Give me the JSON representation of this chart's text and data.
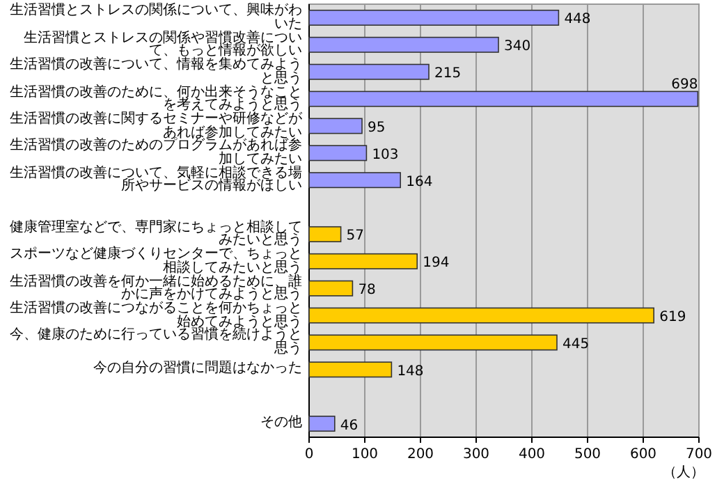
{
  "chart_data": {
    "type": "bar",
    "orientation": "horizontal",
    "xlabel": "（人）",
    "categories": [
      "生活習慣とストレスの関係について、興味がわいた",
      "生活習慣とストレスの関係や習慣改善について、もっと情報が欲しい",
      "生活習慣の改善について、情報を集めてみようと思う",
      "生活習慣の改善のために、何か出来そうなことを考えてみようと思う",
      "生活習慣の改善に関するセミナーや研修などがあれば参加してみたい",
      "生活習慣の改善のためのプログラムがあれば参加してみたい",
      "生活習慣の改善について、気軽に相談できる場所やサービスの情報がほしい",
      null,
      "健康管理室などで、専門家にちょっと相談してみたいと思う",
      "スポーツなど健康づくりセンターで、ちょっと相談してみたいと思う",
      "生活習慣の改善を何か一緒に始めるために、誰かに声をかけてみようと思う",
      "生活習慣の改善につながることを何かちょっと始めてみようと思う",
      "今、健康のために行っている習慣を続けようと思う",
      "今の自分の習慣に問題はなかった",
      null,
      "その他"
    ],
    "values": [
      448,
      340,
      215,
      698,
      95,
      103,
      164,
      null,
      57,
      194,
      78,
      619,
      445,
      148,
      null,
      46
    ],
    "colors": [
      "#9999ff",
      "#9999ff",
      "#9999ff",
      "#9999ff",
      "#9999ff",
      "#9999ff",
      "#9999ff",
      null,
      "#ffcc00",
      "#ffcc00",
      "#ffcc00",
      "#ffcc00",
      "#ffcc00",
      "#ffcc00",
      null,
      "#9999ff"
    ],
    "xlim": [
      0,
      700
    ],
    "xticks": [
      0,
      100,
      200,
      300,
      400,
      500,
      600,
      700
    ],
    "grid": "x",
    "data_labels": true
  }
}
